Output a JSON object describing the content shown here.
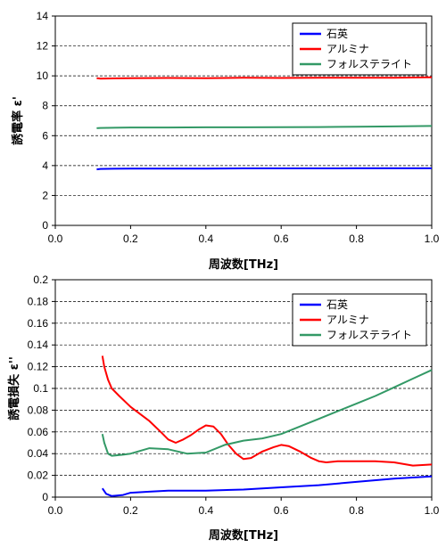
{
  "chart_data": [
    {
      "type": "line",
      "xlabel": "周波数[THz]",
      "ylabel": "誘電率 ε'",
      "xlim": [
        0,
        1
      ],
      "ylim": [
        0,
        14
      ],
      "xticks": [
        "0.0",
        "0.2",
        "0.4",
        "0.6",
        "0.8",
        "1.0"
      ],
      "yticks": [
        "0",
        "2",
        "4",
        "6",
        "8",
        "10",
        "12",
        "14"
      ],
      "grid": "horizontal-dashed",
      "legend_position": "top-right",
      "series": [
        {
          "name": "石英",
          "color": "#0000ff",
          "x": [
            0.11,
            0.12,
            0.2,
            0.3,
            0.4,
            0.5,
            0.6,
            0.7,
            0.8,
            0.9,
            1.0
          ],
          "y": [
            3.75,
            3.78,
            3.8,
            3.8,
            3.8,
            3.81,
            3.81,
            3.81,
            3.82,
            3.82,
            3.82
          ]
        },
        {
          "name": "アルミナ",
          "color": "#ff0000",
          "x": [
            0.11,
            0.12,
            0.2,
            0.3,
            0.4,
            0.5,
            0.6,
            0.7,
            0.8,
            0.9,
            1.0
          ],
          "y": [
            9.85,
            9.82,
            9.84,
            9.86,
            9.85,
            9.87,
            9.86,
            9.87,
            9.88,
            9.88,
            9.9
          ]
        },
        {
          "name": "フォルステライト",
          "color": "#339966",
          "x": [
            0.11,
            0.12,
            0.2,
            0.3,
            0.4,
            0.5,
            0.6,
            0.7,
            0.8,
            0.9,
            1.0
          ],
          "y": [
            6.5,
            6.52,
            6.55,
            6.55,
            6.56,
            6.56,
            6.57,
            6.58,
            6.6,
            6.62,
            6.65
          ]
        }
      ]
    },
    {
      "type": "line",
      "xlabel": "周波数[THz]",
      "ylabel": "誘電損失 ε''",
      "xlim": [
        0,
        1
      ],
      "ylim": [
        0,
        0.2
      ],
      "xticks": [
        "0.0",
        "0.2",
        "0.4",
        "0.6",
        "0.8",
        "1.0"
      ],
      "yticks": [
        "0",
        "0.02",
        "0.04",
        "0.06",
        "0.08",
        "0.1",
        "0.12",
        "0.14",
        "0.16",
        "0.18",
        "0.2"
      ],
      "grid": "horizontal-dashed",
      "legend_position": "top-right",
      "series": [
        {
          "name": "石英",
          "color": "#0000ff",
          "x": [
            0.125,
            0.135,
            0.15,
            0.18,
            0.2,
            0.25,
            0.3,
            0.35,
            0.4,
            0.5,
            0.6,
            0.7,
            0.8,
            0.9,
            1.0
          ],
          "y": [
            0.008,
            0.003,
            0.001,
            0.002,
            0.004,
            0.005,
            0.006,
            0.006,
            0.006,
            0.007,
            0.009,
            0.011,
            0.014,
            0.017,
            0.019
          ]
        },
        {
          "name": "アルミナ",
          "color": "#ff0000",
          "x": [
            0.125,
            0.13,
            0.14,
            0.15,
            0.17,
            0.2,
            0.25,
            0.28,
            0.3,
            0.32,
            0.34,
            0.36,
            0.38,
            0.4,
            0.42,
            0.44,
            0.46,
            0.48,
            0.5,
            0.52,
            0.55,
            0.58,
            0.6,
            0.62,
            0.65,
            0.68,
            0.7,
            0.72,
            0.75,
            0.8,
            0.85,
            0.9,
            0.95,
            1.0
          ],
          "y": [
            0.13,
            0.12,
            0.108,
            0.1,
            0.093,
            0.083,
            0.07,
            0.06,
            0.053,
            0.05,
            0.053,
            0.057,
            0.062,
            0.066,
            0.065,
            0.058,
            0.048,
            0.04,
            0.035,
            0.036,
            0.042,
            0.046,
            0.048,
            0.047,
            0.042,
            0.036,
            0.033,
            0.032,
            0.033,
            0.033,
            0.033,
            0.032,
            0.029,
            0.03
          ]
        },
        {
          "name": "フォルステライト",
          "color": "#339966",
          "x": [
            0.125,
            0.13,
            0.14,
            0.15,
            0.18,
            0.2,
            0.25,
            0.3,
            0.35,
            0.4,
            0.45,
            0.5,
            0.55,
            0.6,
            0.65,
            0.7,
            0.75,
            0.8,
            0.85,
            0.9,
            0.95,
            1.0
          ],
          "y": [
            0.058,
            0.05,
            0.04,
            0.038,
            0.039,
            0.04,
            0.045,
            0.044,
            0.04,
            0.041,
            0.048,
            0.052,
            0.054,
            0.058,
            0.065,
            0.072,
            0.079,
            0.086,
            0.093,
            0.101,
            0.109,
            0.117
          ]
        }
      ]
    }
  ]
}
